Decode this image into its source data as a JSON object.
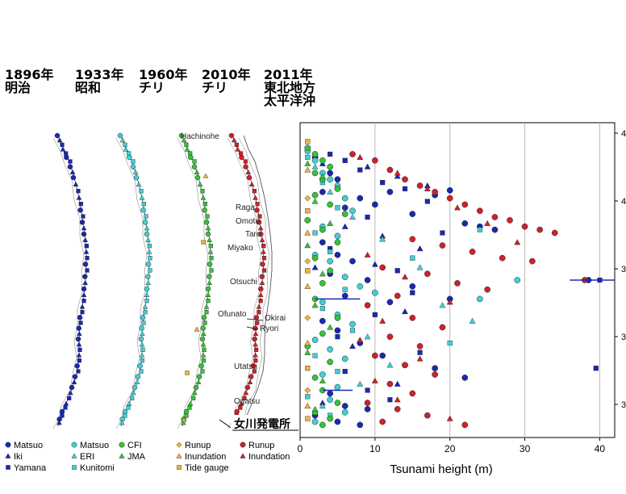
{
  "events": [
    {
      "year": "1896年",
      "name": [
        "明治"
      ]
    },
    {
      "year": "1933年",
      "name": [
        "昭和"
      ]
    },
    {
      "year": "1960年",
      "name": [
        "チリ"
      ]
    },
    {
      "year": "2010年",
      "name": [
        "チリ"
      ]
    },
    {
      "year": "2011年",
      "name": [
        "東北地方",
        "太平洋沖"
      ]
    }
  ],
  "place_labels": [
    "Hachinohe",
    "Raga",
    "Omoto",
    "Taro",
    "Miyako",
    "Otsuchi",
    "Ofunato",
    "Okirai",
    "Ryori",
    "Utatsu",
    "Ogatsu"
  ],
  "plant_label": "女川発電所",
  "legend": [
    [
      {
        "text": "Matsuo",
        "marker": "circle",
        "color": "#1a28b5"
      },
      {
        "text": "Iki",
        "marker": "triangle",
        "color": "#1a28b5"
      },
      {
        "text": "Yamana",
        "marker": "square",
        "color": "#1a28b5"
      }
    ],
    [
      {
        "text": "Matsuo",
        "marker": "circle",
        "color": "#3fd0d8"
      },
      {
        "text": "ERI",
        "marker": "triangle",
        "color": "#3fd0d8"
      },
      {
        "text": "Kunitomi",
        "marker": "square",
        "color": "#3fd0d8"
      }
    ],
    [
      {
        "text": "CFI",
        "marker": "circle",
        "color": "#34c43a"
      },
      {
        "text": "JMA",
        "marker": "triangle",
        "color": "#34c43a"
      }
    ],
    [
      {
        "text": "Runup",
        "marker": "diamond",
        "color": "#f0b23a"
      },
      {
        "text": "Inundation",
        "marker": "triangle",
        "color": "#f0b23a"
      },
      {
        "text": "Tide gauge",
        "marker": "square",
        "color": "#f0b23a"
      }
    ],
    [
      {
        "text": "Runup",
        "marker": "circle",
        "color": "#d0202a"
      },
      {
        "text": "Inundation",
        "marker": "triangle",
        "color": "#d0202a"
      }
    ]
  ],
  "chart_data": {
    "type": "scatter",
    "xlabel": "Tsunami height (m)",
    "xlim": [
      0,
      42
    ],
    "xticks": [
      0,
      10,
      20,
      30,
      40
    ],
    "ytick_labels": [
      "4",
      "4",
      "3",
      "3",
      "3"
    ],
    "series": [
      {
        "color": "#1a28b5",
        "marker": "circle",
        "points": [
          [
            2,
            11.0
          ],
          [
            4,
            16.0
          ],
          [
            5,
            18.0
          ],
          [
            3,
            22.0
          ],
          [
            6,
            27.0
          ],
          [
            8,
            24.0
          ],
          [
            10,
            26.0
          ],
          [
            12,
            22.0
          ],
          [
            15,
            29.0
          ],
          [
            18,
            23.0
          ],
          [
            20,
            21.5
          ],
          [
            22,
            32.0
          ],
          [
            24,
            33.0
          ],
          [
            26,
            34.0
          ],
          [
            3,
            38.0
          ],
          [
            5,
            42.0
          ],
          [
            7,
            44.0
          ],
          [
            4,
            48.0
          ],
          [
            6,
            55.0
          ],
          [
            9,
            50.0
          ],
          [
            12,
            57.0
          ],
          [
            15,
            52.0
          ],
          [
            20,
            56.0
          ],
          [
            3,
            63.0
          ],
          [
            5,
            66.0
          ],
          [
            8,
            70.0
          ],
          [
            11,
            74.0
          ],
          [
            14,
            77.0
          ],
          [
            18,
            78.0
          ],
          [
            22,
            81.0
          ],
          [
            4,
            86.0
          ],
          [
            6,
            90.0
          ],
          [
            9,
            91.0
          ],
          [
            2,
            93.0
          ],
          [
            5,
            95.0
          ],
          [
            8,
            96.0
          ],
          [
            38.5,
            50.0
          ]
        ]
      },
      {
        "color": "#1a28b5",
        "marker": "triangle",
        "points": [
          [
            3,
            13.0
          ],
          [
            9,
            14.0
          ],
          [
            13,
            17.0
          ],
          [
            17,
            20.0
          ],
          [
            6,
            33.0
          ],
          [
            11,
            36.0
          ],
          [
            16,
            40.0
          ],
          [
            2,
            46.0
          ],
          [
            10,
            45.0
          ],
          [
            14,
            60.0
          ],
          [
            7,
            71.0
          ],
          [
            13,
            83.0
          ],
          [
            3,
            89.0
          ]
        ]
      },
      {
        "color": "#1a28b5",
        "marker": "square",
        "points": [
          [
            4,
            10.0
          ],
          [
            6,
            12.0
          ],
          [
            8,
            15.0
          ],
          [
            11,
            19.0
          ],
          [
            14,
            21.0
          ],
          [
            17,
            25.0
          ],
          [
            9,
            30.0
          ],
          [
            19,
            35.0
          ],
          [
            4,
            40.0
          ],
          [
            13,
            47.0
          ],
          [
            15,
            54.0
          ],
          [
            10,
            61.0
          ],
          [
            5,
            68.0
          ],
          [
            16,
            73.0
          ],
          [
            6,
            79.0
          ],
          [
            9,
            85.0
          ],
          [
            12,
            88.0
          ],
          [
            40,
            50.0
          ],
          [
            39.5,
            78.0
          ]
        ]
      },
      {
        "color": "#3fd0d8",
        "marker": "circle",
        "points": [
          [
            1,
            9.0
          ],
          [
            2,
            12.0
          ],
          [
            3,
            16.0
          ],
          [
            4,
            18.0
          ],
          [
            5,
            20.0
          ],
          [
            6,
            24.0
          ],
          [
            7,
            28.0
          ],
          [
            3,
            33.0
          ],
          [
            5,
            36.0
          ],
          [
            2,
            42.0
          ],
          [
            4,
            44.0
          ],
          [
            6,
            49.0
          ],
          [
            8,
            52.0
          ],
          [
            3,
            57.0
          ],
          [
            5,
            61.0
          ],
          [
            7,
            64.0
          ],
          [
            2,
            69.0
          ],
          [
            4,
            72.0
          ],
          [
            6,
            75.0
          ],
          [
            3,
            80.0
          ],
          [
            5,
            84.0
          ],
          [
            4,
            88.0
          ],
          [
            6,
            92.0
          ],
          [
            2,
            95.0
          ],
          [
            29,
            50.0
          ],
          [
            24,
            56.0
          ],
          [
            10,
            54.0
          ]
        ]
      },
      {
        "color": "#3fd0d8",
        "marker": "triangle",
        "points": [
          [
            2,
            14.0
          ],
          [
            4,
            22.0
          ],
          [
            7,
            30.0
          ],
          [
            11,
            37.0
          ],
          [
            16,
            46.0
          ],
          [
            19,
            58.0
          ],
          [
            23,
            63.0
          ],
          [
            9,
            68.0
          ],
          [
            12,
            77.0
          ],
          [
            8,
            83.0
          ],
          [
            3,
            90.0
          ]
        ]
      },
      {
        "color": "#3fd0d8",
        "marker": "square",
        "points": [
          [
            1,
            11.0
          ],
          [
            3,
            19.0
          ],
          [
            5,
            27.0
          ],
          [
            2,
            35.0
          ],
          [
            4,
            41.0
          ],
          [
            6,
            53.0
          ],
          [
            3,
            59.0
          ],
          [
            7,
            66.0
          ],
          [
            2,
            74.0
          ],
          [
            5,
            79.0
          ],
          [
            1,
            87.0
          ],
          [
            4,
            93.0
          ],
          [
            15,
            43.0
          ],
          [
            20,
            70.0
          ],
          [
            24,
            34.0
          ]
        ]
      },
      {
        "color": "#34c43a",
        "marker": "circle",
        "points": [
          [
            1,
            8.0
          ],
          [
            2,
            10.0
          ],
          [
            3,
            12.0
          ],
          [
            4,
            14.0
          ],
          [
            2,
            16.0
          ],
          [
            3,
            18.0
          ],
          [
            5,
            21.0
          ],
          [
            2,
            23.0
          ],
          [
            4,
            26.0
          ],
          [
            6,
            29.0
          ],
          [
            1,
            31.0
          ],
          [
            3,
            34.0
          ],
          [
            5,
            38.0
          ],
          [
            2,
            43.0
          ],
          [
            4,
            47.0
          ],
          [
            3,
            51.0
          ],
          [
            2,
            56.0
          ],
          [
            5,
            62.0
          ],
          [
            3,
            67.0
          ],
          [
            1,
            71.0
          ],
          [
            4,
            76.0
          ],
          [
            2,
            81.0
          ],
          [
            3,
            85.0
          ],
          [
            5,
            89.0
          ],
          [
            4,
            94.0
          ],
          [
            3,
            96.0
          ],
          [
            2,
            92.0
          ]
        ]
      },
      {
        "color": "#34c43a",
        "marker": "triangle",
        "points": [
          [
            1,
            13.0
          ],
          [
            3,
            17.0
          ],
          [
            2,
            25.0
          ],
          [
            4,
            32.0
          ],
          [
            1,
            39.0
          ],
          [
            3,
            48.0
          ],
          [
            2,
            58.0
          ],
          [
            4,
            65.0
          ],
          [
            1,
            73.0
          ],
          [
            3,
            82.0
          ],
          [
            2,
            91.0
          ]
        ]
      },
      {
        "color": "#f0b23a",
        "marker": "diamond",
        "points": [
          [
            1,
            24.0
          ],
          [
            1,
            44.0
          ],
          [
            1,
            62.0
          ],
          [
            1,
            85.0
          ]
        ]
      },
      {
        "color": "#f0b23a",
        "marker": "triangle",
        "points": [
          [
            1,
            15.0
          ],
          [
            1,
            35.0
          ],
          [
            1,
            52.0
          ],
          [
            1,
            70.0
          ],
          [
            1,
            90.0
          ]
        ]
      },
      {
        "color": "#f0b23a",
        "marker": "square",
        "points": [
          [
            1,
            6.0
          ],
          [
            1,
            28.0
          ],
          [
            1,
            47.0
          ],
          [
            1,
            78.0
          ],
          [
            1,
            94.0
          ]
        ]
      },
      {
        "color": "#d0202a",
        "marker": "circle",
        "points": [
          [
            7,
            10.0
          ],
          [
            10,
            12.0
          ],
          [
            12,
            15.0
          ],
          [
            14,
            18.0
          ],
          [
            16,
            20.0
          ],
          [
            18,
            22.0
          ],
          [
            20,
            24.0
          ],
          [
            22,
            26.0
          ],
          [
            24,
            28.0
          ],
          [
            26,
            30.0
          ],
          [
            28,
            31.0
          ],
          [
            30,
            33.0
          ],
          [
            32,
            34.0
          ],
          [
            34,
            35.0
          ],
          [
            15,
            37.0
          ],
          [
            19,
            39.0
          ],
          [
            23,
            41.0
          ],
          [
            27,
            43.0
          ],
          [
            31,
            44.0
          ],
          [
            11,
            46.0
          ],
          [
            17,
            48.0
          ],
          [
            21,
            51.0
          ],
          [
            25,
            53.0
          ],
          [
            13,
            55.0
          ],
          [
            9,
            58.0
          ],
          [
            15,
            62.0
          ],
          [
            19,
            65.0
          ],
          [
            12,
            68.0
          ],
          [
            16,
            71.0
          ],
          [
            10,
            74.0
          ],
          [
            14,
            77.0
          ],
          [
            18,
            80.0
          ],
          [
            12,
            83.0
          ],
          [
            15,
            86.0
          ],
          [
            9,
            89.0
          ],
          [
            13,
            91.0
          ],
          [
            17,
            93.0
          ],
          [
            11,
            95.0
          ],
          [
            22,
            96.0
          ],
          [
            38,
            50.0
          ]
        ]
      },
      {
        "color": "#d0202a",
        "marker": "triangle",
        "points": [
          [
            8,
            11.0
          ],
          [
            13,
            16.0
          ],
          [
            17,
            21.0
          ],
          [
            21,
            27.0
          ],
          [
            25,
            32.0
          ],
          [
            29,
            38.0
          ],
          [
            9,
            42.0
          ],
          [
            14,
            49.0
          ],
          [
            20,
            57.0
          ],
          [
            11,
            63.0
          ],
          [
            8,
            69.0
          ],
          [
            16,
            75.0
          ],
          [
            10,
            82.0
          ],
          [
            13,
            88.0
          ],
          [
            20,
            94.0
          ]
        ]
      }
    ]
  }
}
